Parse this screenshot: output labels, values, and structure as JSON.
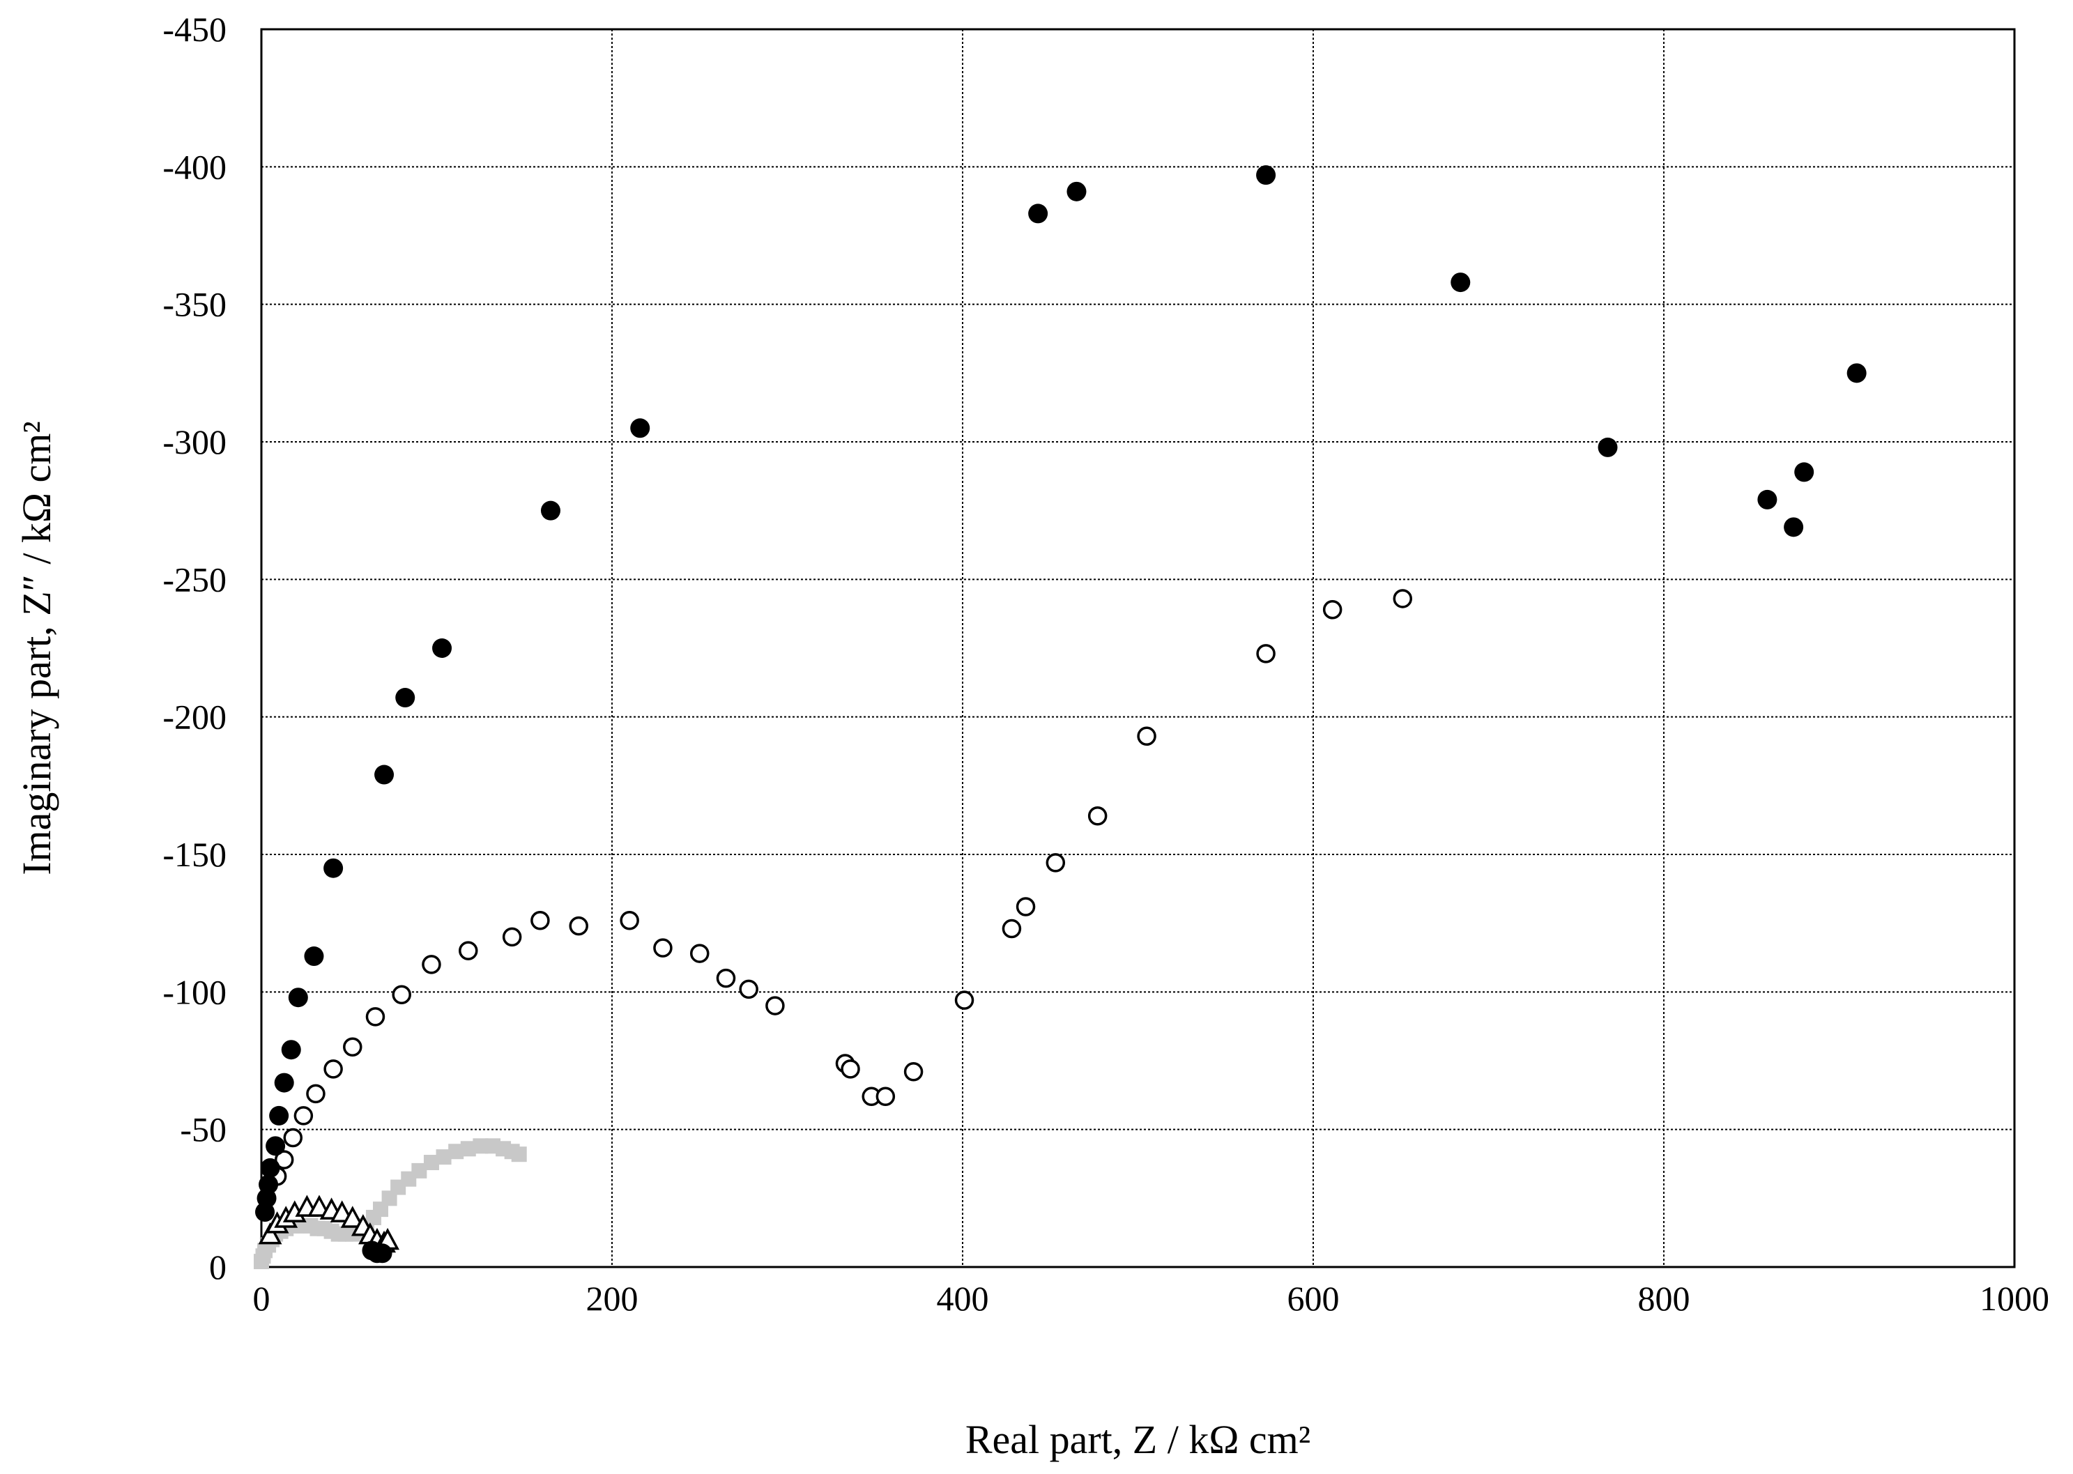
{
  "chart_data": {
    "type": "scatter",
    "title": "",
    "xlabel": "Real part, Z / kΩ cm²",
    "ylabel": "Imaginary part, Z″ / kΩ cm²",
    "xlim": [
      0,
      1000
    ],
    "ylim": [
      0,
      -450
    ],
    "x_ticks": [
      "0",
      "200",
      "400",
      "600",
      "800",
      "1000"
    ],
    "y_ticks": [
      "0",
      "-50",
      "-100",
      "-150",
      "-200",
      "-250",
      "-300",
      "-350",
      "-400",
      "-450"
    ],
    "grid": true,
    "legend": "none",
    "series": [
      {
        "marker": "filled-circle",
        "color": "#000000",
        "points": [
          [
            2,
            -20
          ],
          [
            3,
            -25
          ],
          [
            4,
            -30
          ],
          [
            5,
            -36
          ],
          [
            8,
            -44
          ],
          [
            10,
            -55
          ],
          [
            13,
            -67
          ],
          [
            17,
            -79
          ],
          [
            21,
            -98
          ],
          [
            30,
            -113
          ],
          [
            41,
            -145
          ],
          [
            70,
            -179
          ],
          [
            82,
            -207
          ],
          [
            103,
            -225
          ],
          [
            165,
            -275
          ],
          [
            216,
            -305
          ],
          [
            443,
            -383
          ],
          [
            465,
            -391
          ],
          [
            573,
            -397
          ],
          [
            684,
            -358
          ],
          [
            768,
            -298
          ],
          [
            859,
            -279
          ],
          [
            874,
            -269
          ],
          [
            880,
            -289
          ],
          [
            910,
            -325
          ],
          [
            63,
            -6
          ],
          [
            66,
            -5
          ],
          [
            69,
            -5
          ]
        ]
      },
      {
        "marker": "open-circle",
        "color": "#000000",
        "points": [
          [
            9,
            -33
          ],
          [
            13,
            -39
          ],
          [
            18,
            -47
          ],
          [
            24,
            -55
          ],
          [
            31,
            -63
          ],
          [
            41,
            -72
          ],
          [
            52,
            -80
          ],
          [
            65,
            -91
          ],
          [
            80,
            -99
          ],
          [
            97,
            -110
          ],
          [
            118,
            -115
          ],
          [
            143,
            -120
          ],
          [
            159,
            -126
          ],
          [
            181,
            -124
          ],
          [
            210,
            -126
          ],
          [
            229,
            -116
          ],
          [
            250,
            -114
          ],
          [
            265,
            -105
          ],
          [
            278,
            -101
          ],
          [
            293,
            -95
          ],
          [
            333,
            -74
          ],
          [
            336,
            -72
          ],
          [
            348,
            -62
          ],
          [
            356,
            -62
          ],
          [
            372,
            -71
          ],
          [
            401,
            -97
          ],
          [
            428,
            -123
          ],
          [
            436,
            -131
          ],
          [
            453,
            -147
          ],
          [
            477,
            -164
          ],
          [
            505,
            -193
          ],
          [
            573,
            -223
          ],
          [
            611,
            -239
          ],
          [
            651,
            -243
          ]
        ]
      },
      {
        "marker": "open-triangle",
        "color": "#000000",
        "points": [
          [
            5,
            -12
          ],
          [
            9,
            -16
          ],
          [
            14,
            -18
          ],
          [
            19,
            -20
          ],
          [
            26,
            -22
          ],
          [
            33,
            -22
          ],
          [
            40,
            -21
          ],
          [
            46,
            -20
          ],
          [
            52,
            -18
          ],
          [
            58,
            -15
          ],
          [
            62,
            -12
          ],
          [
            66,
            -10
          ],
          [
            70,
            -9
          ],
          [
            72,
            -10
          ]
        ]
      },
      {
        "marker": "gray-square",
        "color": "#c8c8c8",
        "points": [
          [
            0,
            -2
          ],
          [
            1,
            -4
          ],
          [
            2,
            -6
          ],
          [
            4,
            -8
          ],
          [
            6,
            -10
          ],
          [
            8,
            -12
          ],
          [
            11,
            -13
          ],
          [
            14,
            -14
          ],
          [
            17,
            -15
          ],
          [
            20,
            -15
          ],
          [
            24,
            -15
          ],
          [
            28,
            -15
          ],
          [
            32,
            -14
          ],
          [
            36,
            -14
          ],
          [
            40,
            -13
          ],
          [
            44,
            -12
          ],
          [
            48,
            -12
          ],
          [
            52,
            -12
          ],
          [
            56,
            -13
          ],
          [
            60,
            -15
          ],
          [
            64,
            -18
          ],
          [
            68,
            -21
          ],
          [
            73,
            -25
          ],
          [
            78,
            -29
          ],
          [
            84,
            -32
          ],
          [
            90,
            -35
          ],
          [
            97,
            -38
          ],
          [
            104,
            -40
          ],
          [
            111,
            -42
          ],
          [
            118,
            -43
          ],
          [
            125,
            -44
          ],
          [
            132,
            -44
          ],
          [
            138,
            -43
          ],
          [
            143,
            -42
          ],
          [
            147,
            -41
          ]
        ]
      }
    ]
  }
}
